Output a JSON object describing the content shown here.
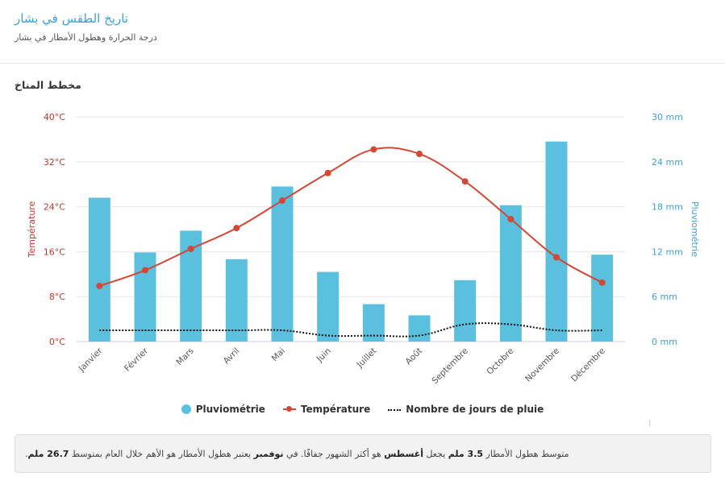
{
  "page": {
    "title": "تاريخ الطقس في بشار",
    "subtitle": "درجة الحرارة وهطول الأمطار في بشار",
    "section_title": "مخطط المناخ"
  },
  "colors": {
    "precipitation": "#5bc0de",
    "temperature": "#d14836",
    "rain_days": "#111111",
    "left_axis": "#c0392b",
    "right_axis": "#3aa0d8"
  },
  "legend": {
    "precip": "Pluviométrie",
    "temp": "Température",
    "days": "Nombre de jours de pluie"
  },
  "footer": {
    "p1": "متوسط هطول الأمطار ",
    "min_value": "3.5 ملم",
    "p2": " يجعل ",
    "driest_month": "أغسطس",
    "p3": " هو أكثر الشهور جفافًا. في ",
    "wettest_month": "نوفمبر",
    "p4": " يعتبر هطول الأمطار هو الأهم خلال العام بمتوسط ",
    "max_value": "26.7 ملم",
    "p5": "."
  },
  "chart_data": {
    "type": "bar",
    "categories": [
      "Janvier",
      "Février",
      "Mars",
      "Avril",
      "Mai",
      "Juin",
      "Juillet",
      "Août",
      "Septembre",
      "Octobre",
      "Novembre",
      "Décembre"
    ],
    "series": [
      {
        "name": "Pluviométrie",
        "type": "bar",
        "axis": "right",
        "unit": "mm",
        "values": [
          19.2,
          11.9,
          14.8,
          11.0,
          20.7,
          9.3,
          5.0,
          3.5,
          8.2,
          18.2,
          26.7,
          11.6
        ]
      },
      {
        "name": "Température",
        "type": "line",
        "axis": "left",
        "unit": "°C",
        "values": [
          9.9,
          12.7,
          16.5,
          20.2,
          25.1,
          30.0,
          34.2,
          33.4,
          28.5,
          21.8,
          15.0,
          10.5
        ]
      },
      {
        "name": "Nombre de jours de pluie",
        "type": "line",
        "style": "dotted",
        "axis": "right",
        "values": [
          1.5,
          1.5,
          1.5,
          1.5,
          1.5,
          0.8,
          0.8,
          0.8,
          2.3,
          2.3,
          1.5,
          1.5
        ]
      }
    ],
    "y_left": {
      "label": "Température",
      "ticks": [
        "0°C",
        "8°C",
        "16°C",
        "24°C",
        "32°C",
        "40°C"
      ],
      "ylim": [
        0,
        40
      ]
    },
    "y_right": {
      "label": "Pluviométrie",
      "ticks": [
        "0 mm",
        "6 mm",
        "12 mm",
        "18 mm",
        "24 mm",
        "30 mm"
      ],
      "ylim": [
        0,
        30
      ]
    },
    "grid": true,
    "legend_position": "bottom"
  }
}
